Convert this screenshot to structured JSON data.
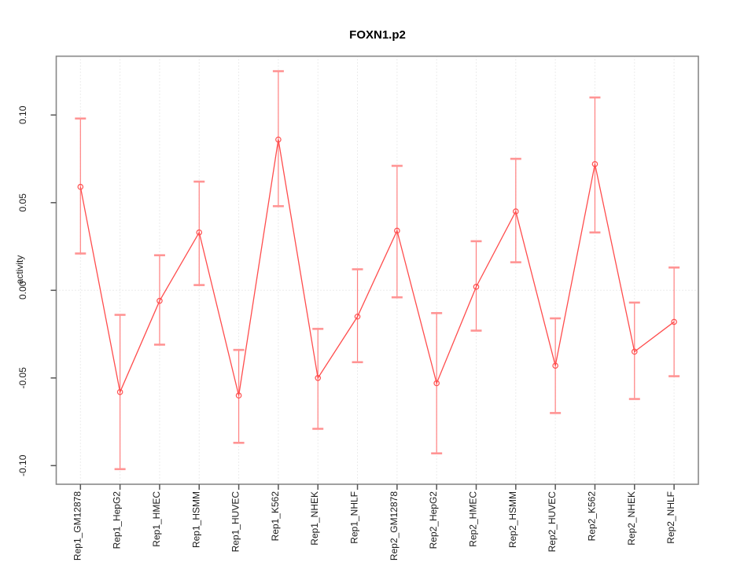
{
  "chart_data": {
    "type": "line",
    "title": "FOXN1.p2",
    "ylabel": "activity",
    "xlabel": "",
    "legend_position": "none",
    "marker": "open-circle",
    "grid": {
      "vertical_dotted_per_category": true,
      "horizontal_dotted_at_zero": true
    },
    "ylim": [
      -0.111,
      0.134
    ],
    "yticks": [
      -0.1,
      -0.05,
      0.0,
      0.05,
      0.1
    ],
    "ytick_labels": [
      "-0.10",
      "-0.05",
      "0.00",
      "0.05",
      "0.10"
    ],
    "categories": [
      "Rep1_GM12878",
      "Rep1_HepG2",
      "Rep1_HMEC",
      "Rep1_HSMM",
      "Rep1_HUVEC",
      "Rep1_K562",
      "Rep1_NHEK",
      "Rep1_NHLF",
      "Rep2_GM12878",
      "Rep2_HepG2",
      "Rep2_HMEC",
      "Rep2_HSMM",
      "Rep2_HUVEC",
      "Rep2_K562",
      "Rep2_NHEK",
      "Rep2_NHLF"
    ],
    "series": [
      {
        "name": "activity",
        "values": [
          0.059,
          -0.058,
          -0.006,
          0.033,
          -0.06,
          0.086,
          -0.05,
          -0.015,
          0.034,
          -0.053,
          0.002,
          0.045,
          -0.043,
          0.072,
          -0.035,
          -0.018
        ],
        "error_upper": [
          0.098,
          -0.014,
          0.02,
          0.062,
          -0.034,
          0.125,
          -0.022,
          0.012,
          0.071,
          -0.013,
          0.028,
          0.075,
          -0.016,
          0.11,
          -0.007,
          0.013
        ],
        "error_lower": [
          0.021,
          -0.102,
          -0.031,
          0.003,
          -0.087,
          0.048,
          -0.079,
          -0.041,
          -0.004,
          -0.093,
          -0.023,
          0.016,
          -0.07,
          0.033,
          -0.062,
          -0.049
        ]
      }
    ],
    "colors": {
      "series_line": "#ff4d4d",
      "marker_stroke": "#ff5050",
      "error_bar_line": "#ff8080",
      "error_bar_cap": "#ff9494",
      "gridline": "#d9d9d9",
      "plot_border": "#888888",
      "tick_mark": "#555555",
      "tick_text": "#1a1a1a",
      "background": "#ffffff"
    }
  }
}
